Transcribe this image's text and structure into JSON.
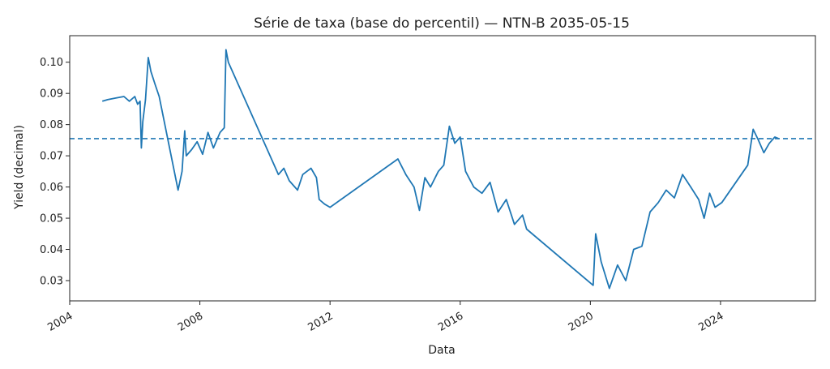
{
  "chart_data": {
    "type": "line",
    "title": "Série de taxa (base do percentil) — NTN-B 2035-05-15",
    "xlabel": "Data",
    "ylabel": "Yield (decimal)",
    "xlim": [
      "2004-01-01",
      "2026-12-01"
    ],
    "ylim": [
      0.0235,
      0.1085
    ],
    "x_ticks": [
      {
        "date": "2004-01-01",
        "label": "2004"
      },
      {
        "date": "2008-01-01",
        "label": "2008"
      },
      {
        "date": "2012-01-01",
        "label": "2012"
      },
      {
        "date": "2016-01-01",
        "label": "2016"
      },
      {
        "date": "2020-01-01",
        "label": "2020"
      },
      {
        "date": "2024-01-01",
        "label": "2024"
      }
    ],
    "y_ticks": [
      {
        "value": 0.03,
        "label": "0.03"
      },
      {
        "value": 0.04,
        "label": "0.04"
      },
      {
        "value": 0.05,
        "label": "0.05"
      },
      {
        "value": 0.06,
        "label": "0.06"
      },
      {
        "value": 0.07,
        "label": "0.07"
      },
      {
        "value": 0.08,
        "label": "0.08"
      },
      {
        "value": 0.09,
        "label": "0.09"
      },
      {
        "value": 0.1,
        "label": "0.10"
      }
    ],
    "grid": false,
    "reference_line": {
      "value": 0.0755,
      "style": "dashed"
    },
    "series": [
      {
        "color": "#1f77b4",
        "points": [
          [
            "2005-01-01",
            0.0875
          ],
          [
            "2005-03-01",
            0.088
          ],
          [
            "2005-06-01",
            0.0885
          ],
          [
            "2005-09-01",
            0.089
          ],
          [
            "2005-11-01",
            0.0875
          ],
          [
            "2006-01-01",
            0.089
          ],
          [
            "2006-02-01",
            0.0865
          ],
          [
            "2006-03-01",
            0.0875
          ],
          [
            "2006-03-15",
            0.0725
          ],
          [
            "2006-04-01",
            0.081
          ],
          [
            "2006-05-01",
            0.088
          ],
          [
            "2006-06-01",
            0.1015
          ],
          [
            "2006-07-01",
            0.097
          ],
          [
            "2006-08-15",
            0.093
          ],
          [
            "2006-10-01",
            0.089
          ],
          [
            "2007-05-01",
            0.059
          ],
          [
            "2007-06-15",
            0.065
          ],
          [
            "2007-07-15",
            0.078
          ],
          [
            "2007-08-01",
            0.07
          ],
          [
            "2007-10-01",
            0.072
          ],
          [
            "2007-12-01",
            0.0745
          ],
          [
            "2008-02-01",
            0.0705
          ],
          [
            "2008-04-01",
            0.0775
          ],
          [
            "2008-06-01",
            0.0725
          ],
          [
            "2008-08-15",
            0.0775
          ],
          [
            "2008-10-01",
            0.079
          ],
          [
            "2008-10-20",
            0.104
          ],
          [
            "2008-11-15",
            0.1
          ],
          [
            "2010-06-01",
            0.064
          ],
          [
            "2010-08-01",
            0.066
          ],
          [
            "2010-10-01",
            0.062
          ],
          [
            "2011-01-01",
            0.059
          ],
          [
            "2011-03-01",
            0.064
          ],
          [
            "2011-06-01",
            0.066
          ],
          [
            "2011-08-01",
            0.063
          ],
          [
            "2011-09-01",
            0.056
          ],
          [
            "2011-11-01",
            0.0545
          ],
          [
            "2012-01-01",
            0.0535
          ],
          [
            "2014-02-01",
            0.069
          ],
          [
            "2014-05-01",
            0.064
          ],
          [
            "2014-08-01",
            0.06
          ],
          [
            "2014-10-01",
            0.0525
          ],
          [
            "2014-12-01",
            0.063
          ],
          [
            "2015-02-01",
            0.06
          ],
          [
            "2015-05-01",
            0.065
          ],
          [
            "2015-07-01",
            0.067
          ],
          [
            "2015-09-01",
            0.0795
          ],
          [
            "2015-11-01",
            0.074
          ],
          [
            "2016-01-01",
            0.076
          ],
          [
            "2016-03-01",
            0.065
          ],
          [
            "2016-06-01",
            0.06
          ],
          [
            "2016-09-01",
            0.058
          ],
          [
            "2016-12-01",
            0.0615
          ],
          [
            "2017-03-01",
            0.052
          ],
          [
            "2017-06-01",
            0.056
          ],
          [
            "2017-09-01",
            0.048
          ],
          [
            "2017-12-01",
            0.051
          ],
          [
            "2018-01-15",
            0.0465
          ],
          [
            "2020-02-01",
            0.0285
          ],
          [
            "2020-03-01",
            0.045
          ],
          [
            "2020-05-01",
            0.036
          ],
          [
            "2020-08-01",
            0.0275
          ],
          [
            "2020-11-01",
            0.035
          ],
          [
            "2021-02-01",
            0.03
          ],
          [
            "2021-05-01",
            0.04
          ],
          [
            "2021-08-01",
            0.041
          ],
          [
            "2021-11-01",
            0.052
          ],
          [
            "2022-02-01",
            0.055
          ],
          [
            "2022-05-01",
            0.059
          ],
          [
            "2022-08-01",
            0.0565
          ],
          [
            "2022-11-01",
            0.064
          ],
          [
            "2023-02-01",
            0.06
          ],
          [
            "2023-05-01",
            0.056
          ],
          [
            "2023-07-01",
            0.05
          ],
          [
            "2023-09-01",
            0.058
          ],
          [
            "2023-11-01",
            0.0535
          ],
          [
            "2024-01-15",
            0.055
          ],
          [
            "2024-11-01",
            0.067
          ],
          [
            "2025-01-01",
            0.0785
          ],
          [
            "2025-03-01",
            0.075
          ],
          [
            "2025-05-01",
            0.071
          ],
          [
            "2025-07-01",
            0.074
          ],
          [
            "2025-09-01",
            0.076
          ],
          [
            "2025-10-15",
            0.0755
          ]
        ]
      }
    ]
  }
}
